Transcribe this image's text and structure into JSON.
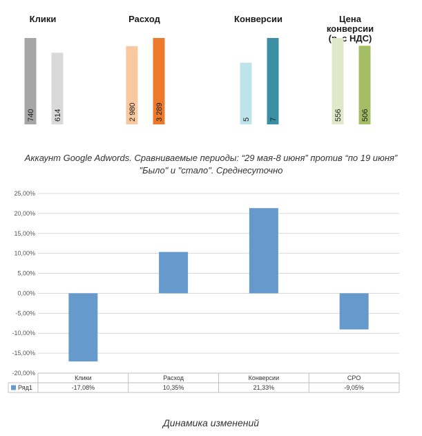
{
  "top_chart": {
    "chart_data": {
      "type": "bar",
      "groups": [
        {
          "title_lines": [
            "Клики"
          ],
          "labels": [
            "740",
            "614"
          ],
          "values": [
            740,
            614
          ],
          "colors": [
            "#a6a6a6",
            "#d9d9d9"
          ]
        },
        {
          "title_lines": [
            "Расход"
          ],
          "labels": [
            "2 980",
            "3 289"
          ],
          "values": [
            2980,
            3289
          ],
          "colors": [
            "#f8c9a0",
            "#ec7a2a"
          ]
        },
        {
          "title_lines": [
            "Конверсии"
          ],
          "labels": [
            "5",
            "7"
          ],
          "values": [
            5,
            7
          ],
          "colors": [
            "#bfe3ea",
            "#3b8fa4"
          ]
        },
        {
          "title_lines": [
            "Цена",
            "конверсии",
            "(р. с НДС)"
          ],
          "labels": [
            "556",
            "506"
          ],
          "values": [
            556,
            506
          ],
          "colors": [
            "#dfe8c8",
            "#a5be65"
          ]
        }
      ]
    }
  },
  "captions": {
    "line1": "Аккаунт Google Adwords. Сравниваемые периоды: “29 мая-8 июня” против “по 19 июня”",
    "line2": "\"Было\" и \"стало\". Среднесуточно",
    "bottom": "Динамика изменений"
  },
  "bottom_chart": {
    "chart_data": {
      "type": "bar",
      "categories": [
        "Клики",
        "Расход",
        "Конверсии",
        "CPO"
      ],
      "series": [
        {
          "name": "Ряд1",
          "values": [
            -17.08,
            10.35,
            21.33,
            -9.05
          ],
          "labels": [
            "-17,08%",
            "10,35%",
            "21,33%",
            "-9,05%"
          ]
        }
      ],
      "ylim": [
        -20,
        25
      ],
      "yticks": [
        25,
        20,
        15,
        10,
        5,
        0,
        -5,
        -10,
        -15,
        -20
      ],
      "ytick_labels": [
        "25,00%",
        "20,00%",
        "15,00%",
        "10,00%",
        "5,00%",
        "0,00%",
        "-5,00%",
        "-10,00%",
        "-15,00%",
        "-20,00%"
      ],
      "grid": true,
      "legend": "data-table",
      "bar_color": "#6699cc"
    }
  }
}
